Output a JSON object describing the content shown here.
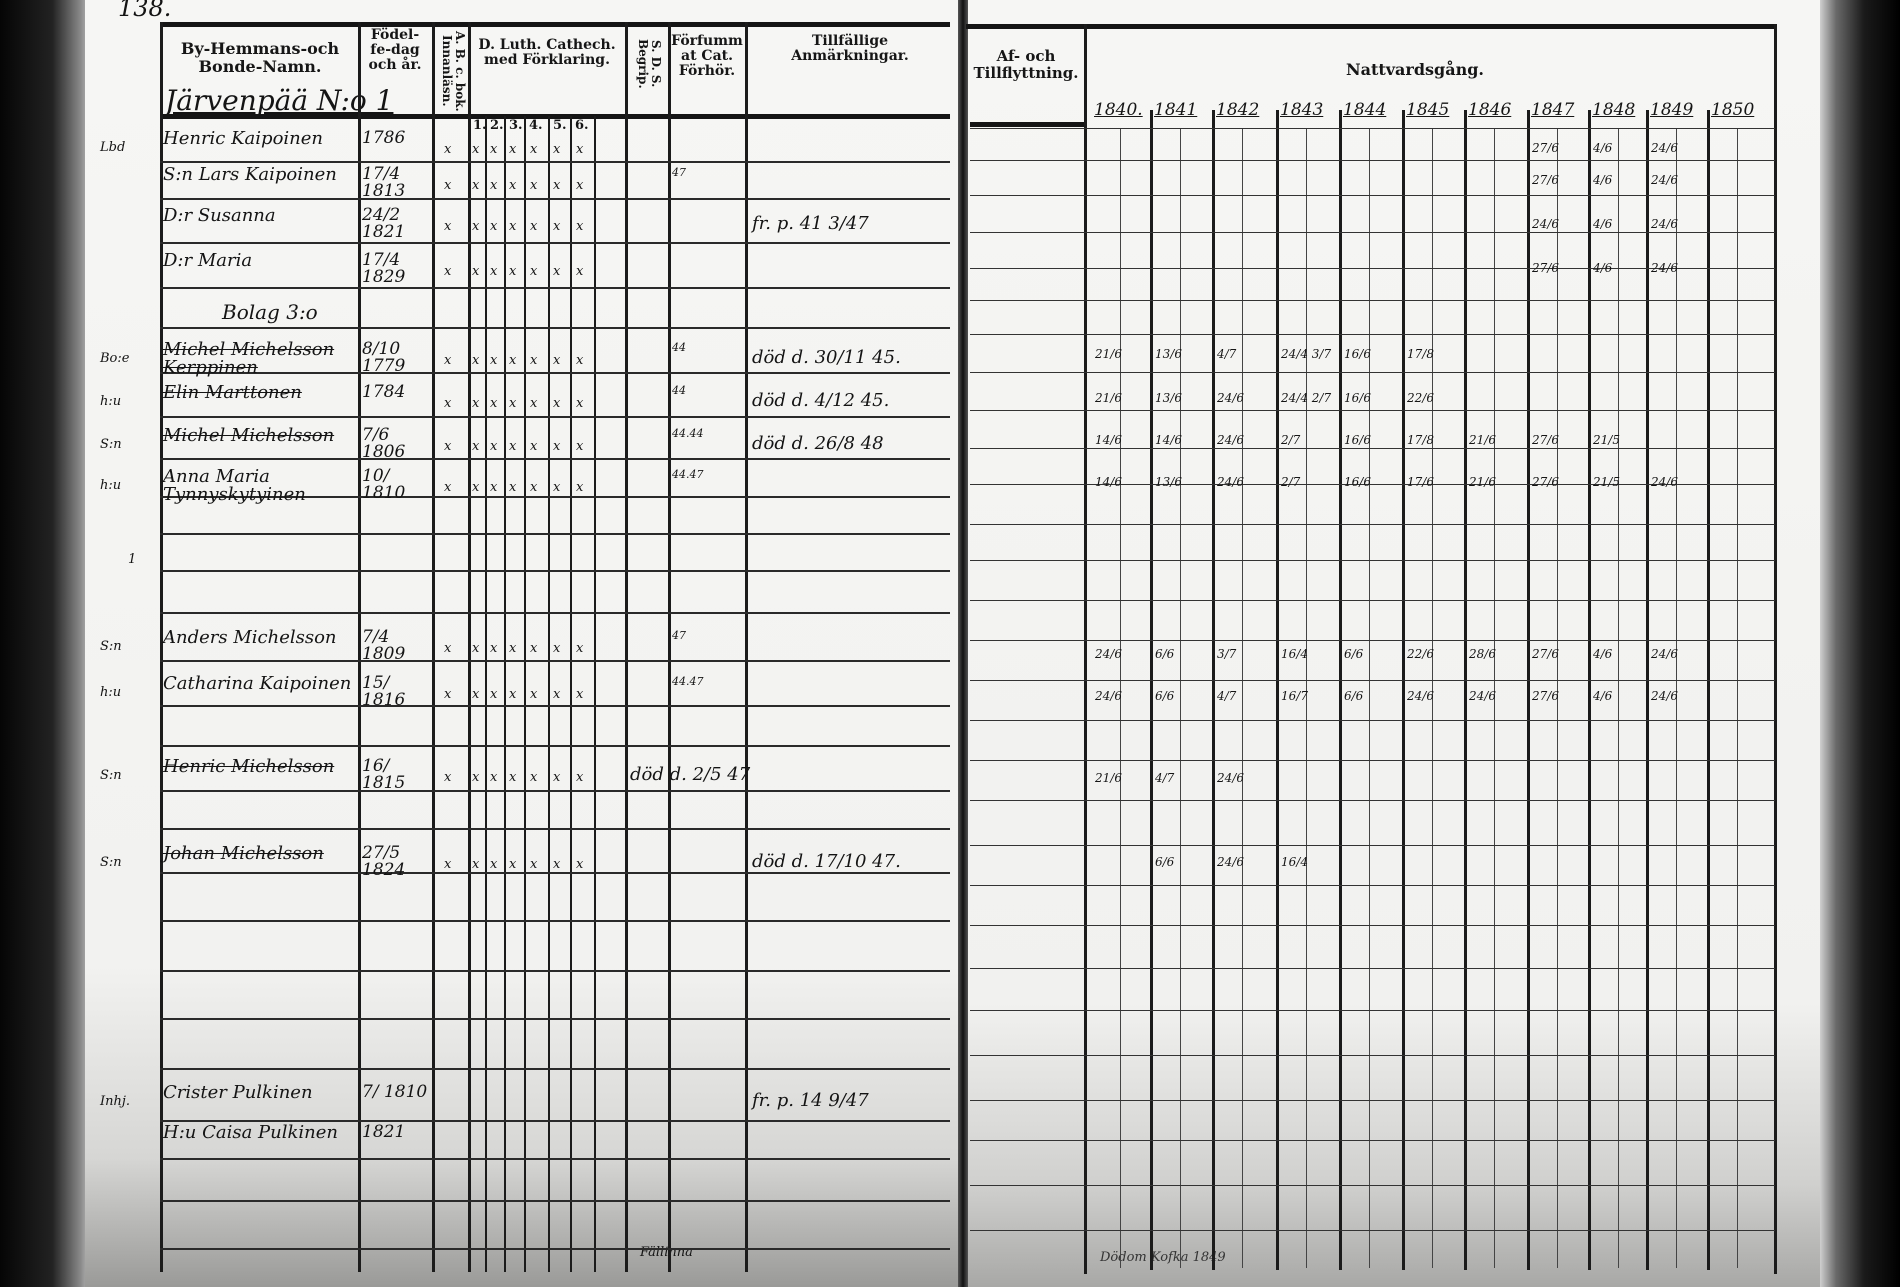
{
  "page_number": "138.",
  "left_page": {
    "headers": {
      "name": "By-Hemmans-och Bonde-Namn.",
      "birth": "Födel-fe-dag och år.",
      "abc": "A. B. c. bok. Innanläsn.",
      "catechism": "D. Luth. Cathech. med Förklaring.",
      "catechism_sub": [
        "1.",
        "2.",
        "3.",
        "4.",
        "5.",
        "6."
      ],
      "sds": "S. D. S. Begrip.",
      "missed": "Förfummat Cat. Förhör.",
      "remarks": "Tillfällige Anmärkningar."
    },
    "homestead": "Järvenpää N:o 1",
    "group": "Bolag 3:o",
    "rows": [
      {
        "margin": "Lbd",
        "name": "Henric Kaipoinen",
        "birth": "1786",
        "marks": [
          "x",
          "x",
          "x",
          "x",
          "x",
          "x",
          "x"
        ],
        "missed": "",
        "remark": "",
        "struck": false
      },
      {
        "margin": "",
        "name": "S:n Lars Kaipoinen",
        "birth": "17/4 1813",
        "marks": [
          "x",
          "x",
          "x",
          "x",
          "x",
          "x",
          "x"
        ],
        "missed": "47",
        "remark": "",
        "struck": false
      },
      {
        "margin": "",
        "name": "D:r Susanna",
        "birth": "24/2 1821",
        "marks": [
          "x",
          "x",
          "x",
          "x",
          "x",
          "x",
          "x"
        ],
        "missed": "",
        "remark": "fr. p. 41 3/47",
        "struck": false
      },
      {
        "margin": "",
        "name": "D:r Maria",
        "birth": "17/4 1829",
        "marks": [
          "x",
          "x",
          "x",
          "x",
          "x",
          "x",
          "x"
        ],
        "missed": "",
        "remark": "",
        "struck": false
      },
      {
        "margin": "Bo:e",
        "name": "Michel Michelsson Kerppinen",
        "birth": "8/10 1779",
        "marks": [
          "x",
          "x",
          "x",
          "x",
          "x",
          "x",
          "x"
        ],
        "missed": "44",
        "remark": "död d. 30/11 45.",
        "struck": true
      },
      {
        "margin": "h:u",
        "name": "Elin Marttonen",
        "birth": "1784",
        "marks": [
          "x",
          "x",
          "x",
          "x",
          "x",
          "x",
          "x"
        ],
        "missed": "44",
        "remark": "död d. 4/12 45.",
        "struck": true
      },
      {
        "margin": "S:n",
        "name": "Michel Michelsson",
        "birth": "7/6 1806",
        "marks": [
          "x",
          "x",
          "x",
          "x",
          "x",
          "x",
          "x"
        ],
        "missed": "44.44",
        "remark": "död d. 26/8 48",
        "struck": true
      },
      {
        "margin": "h:u",
        "name": "Anna Maria Tynnyskytyinen",
        "birth": "10/ 1810",
        "marks": [
          "x",
          "x",
          "x",
          "x",
          "x",
          "x",
          "x"
        ],
        "missed": "44.47",
        "remark": "",
        "struck": false
      },
      {
        "margin": "S:n",
        "name": "Anders Michelsson",
        "birth": "7/4 1809",
        "marks": [
          "x",
          "x",
          "x",
          "x",
          "x",
          "x",
          "x"
        ],
        "missed": "47",
        "remark": "",
        "struck": false
      },
      {
        "margin": "h:u",
        "name": "Catharina Kaipoinen",
        "birth": "15/ 1816",
        "marks": [
          "x",
          "x",
          "x",
          "x",
          "x",
          "x",
          "x"
        ],
        "missed": "44.47",
        "remark": "",
        "struck": false
      },
      {
        "margin": "S:n",
        "name": "Henric Michelsson",
        "birth": "16/ 1815",
        "marks": [
          "x",
          "x",
          "x",
          "x",
          "x",
          "x",
          "x"
        ],
        "missed": "",
        "remark": "död d. 2/5 47",
        "struck": true
      },
      {
        "margin": "S:n",
        "name": "Johan Michelsson",
        "birth": "27/5 1824",
        "marks": [
          "x",
          "x",
          "x",
          "x",
          "x",
          "x",
          "x"
        ],
        "missed": "",
        "remark": "död d. 17/10 47.",
        "struck": true
      },
      {
        "margin": "Inhj.",
        "name": "Crister Pulkinen",
        "birth": "7/ 1810",
        "marks": [
          "",
          "",
          "",
          "",
          "",
          "",
          ""
        ],
        "missed": "",
        "remark": "fr. p. 14 9/47",
        "struck": false
      },
      {
        "margin": "",
        "name": "H:u Caisa Pulkinen",
        "birth": "1821",
        "marks": [
          "",
          "",
          "",
          "",
          "",
          "",
          ""
        ],
        "missed": "",
        "remark": "",
        "struck": false
      }
    ],
    "margin_extra": "1",
    "bottom_note": "Fällinna"
  },
  "right_page": {
    "headers": {
      "moving": "Af- och Tillflyttning.",
      "communion": "Nattvardsgång."
    },
    "years": [
      "1840.",
      "1841",
      "1842",
      "1843",
      "1844",
      "1845",
      "1846",
      "1847",
      "1848",
      "1849",
      "1850"
    ],
    "communion_rows": [
      [
        "",
        "",
        "",
        "",
        "",
        "",
        "",
        "27/6",
        "4/6",
        "24/6",
        ""
      ],
      [
        "",
        "",
        "",
        "",
        "",
        "",
        "",
        "27/6",
        "4/6",
        "24/6",
        ""
      ],
      [
        "",
        "",
        "",
        "",
        "",
        "",
        "",
        "24/6",
        "4/6",
        "24/6",
        ""
      ],
      [
        "",
        "",
        "",
        "",
        "",
        "",
        "",
        "27/6",
        "4/6",
        "24/6",
        ""
      ],
      [
        "21/6",
        "13/6",
        "4/7",
        "24/4 3/7",
        "16/6",
        "17/8",
        "",
        "",
        "",
        "",
        ""
      ],
      [
        "21/6",
        "13/6",
        "24/6",
        "24/4 2/7",
        "16/6",
        "22/6",
        "",
        "",
        "",
        "",
        ""
      ],
      [
        "14/6",
        "14/6",
        "24/6",
        "2/7",
        "16/6",
        "17/8",
        "21/6",
        "27/6",
        "21/5",
        "",
        ""
      ],
      [
        "14/6",
        "13/6",
        "24/6",
        "2/7",
        "16/6",
        "17/6",
        "21/6",
        "27/6",
        "21/5",
        "24/6",
        ""
      ],
      [
        "24/6",
        "6/6",
        "3/7",
        "16/4",
        "6/6",
        "22/6",
        "28/6",
        "27/6",
        "4/6",
        "24/6",
        ""
      ],
      [
        "24/6",
        "6/6",
        "4/7",
        "16/7",
        "6/6",
        "24/6",
        "24/6",
        "27/6",
        "4/6",
        "24/6",
        ""
      ],
      [
        "21/6",
        "4/7",
        "24/6",
        "",
        "",
        "",
        "",
        "",
        "",
        "",
        ""
      ],
      [
        "",
        "6/6",
        "24/6",
        "16/4",
        "",
        "",
        "",
        "",
        "",
        "",
        ""
      ],
      [
        "",
        "",
        "",
        "",
        "",
        "",
        "",
        "",
        "",
        "",
        ""
      ],
      [
        "",
        "",
        "",
        "",
        "",
        "",
        "",
        "",
        "",
        "",
        ""
      ]
    ],
    "bottom_note": "Dödom Kofka 1849"
  }
}
